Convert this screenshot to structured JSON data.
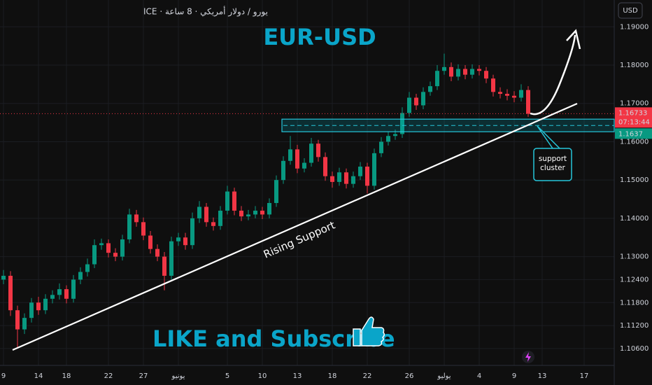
{
  "chart_data": {
    "type": "candlestick",
    "title": "EUR-USD",
    "symbol_label": "ICE · يورو / دولار أمريكي · 8 ساعة",
    "currency": "USD",
    "annotations": {
      "support_line": "Rising Support",
      "zone": "support cluster",
      "cta": "LIKE and Subscribe"
    },
    "current_price": 1.16733,
    "countdown": "07:13:44",
    "zone_price": 1.1637,
    "up_color": "#089981",
    "down_color": "#f23645",
    "ylim": [
      1.1016,
      1.197
    ],
    "yticks": [
      {
        "value": 1.19,
        "label": "1.19000"
      },
      {
        "value": 1.18,
        "label": "1.18000"
      },
      {
        "value": 1.17,
        "label": "1.17000"
      },
      {
        "value": 1.16,
        "label": "1.16000"
      },
      {
        "value": 1.15,
        "label": "1.15000"
      },
      {
        "value": 1.14,
        "label": "1.14000"
      },
      {
        "value": 1.13,
        "label": "1.13000"
      },
      {
        "value": 1.124,
        "label": "1.12400"
      },
      {
        "value": 1.118,
        "label": "1.11800"
      },
      {
        "value": 1.112,
        "label": "1.11200"
      },
      {
        "value": 1.106,
        "label": "1.10600"
      }
    ],
    "xlim": [
      -0.5,
      87.3
    ],
    "xticks": [
      {
        "value": 0,
        "label": "9"
      },
      {
        "value": 5,
        "label": "14"
      },
      {
        "value": 9,
        "label": "18"
      },
      {
        "value": 15,
        "label": "22"
      },
      {
        "value": 20,
        "label": "27"
      },
      {
        "value": 25,
        "label": "يونيو"
      },
      {
        "value": 32,
        "label": "5"
      },
      {
        "value": 37,
        "label": "10"
      },
      {
        "value": 42,
        "label": "13"
      },
      {
        "value": 47,
        "label": "18"
      },
      {
        "value": 52,
        "label": "22"
      },
      {
        "value": 58,
        "label": "26"
      },
      {
        "value": 63,
        "label": "يوليو"
      },
      {
        "value": 68,
        "label": "4"
      },
      {
        "value": 73,
        "label": "9"
      },
      {
        "value": 77,
        "label": "13"
      },
      {
        "value": 83,
        "label": "17"
      }
    ],
    "open": [
      1.124,
      1.125,
      1.116,
      1.111,
      1.114,
      1.118,
      1.116,
      1.119,
      1.12,
      1.1215,
      1.119,
      1.124,
      1.126,
      1.128,
      1.133,
      1.1335,
      1.131,
      1.13,
      1.1345,
      1.141,
      1.139,
      1.1355,
      1.132,
      1.13,
      1.125,
      1.134,
      1.135,
      1.133,
      1.14,
      1.143,
      1.139,
      1.138,
      1.142,
      1.147,
      1.142,
      1.1405,
      1.141,
      1.142,
      1.141,
      1.144,
      1.15,
      1.155,
      1.158,
      1.153,
      1.1545,
      1.1595,
      1.156,
      1.151,
      1.1495,
      1.152,
      1.149,
      1.151,
      1.1535,
      1.1485,
      1.157,
      1.16,
      1.1615,
      1.162,
      1.1675,
      1.1715,
      1.1695,
      1.173,
      1.1745,
      1.1785,
      1.1795,
      1.177,
      1.179,
      1.1775,
      1.179,
      1.1785,
      1.1765,
      1.173,
      1.1725,
      1.172,
      1.1715,
      1.1735
    ],
    "high": [
      1.1265,
      1.1262,
      1.1172,
      1.1152,
      1.1192,
      1.1195,
      1.1202,
      1.1212,
      1.123,
      1.1225,
      1.1252,
      1.1272,
      1.1295,
      1.1345,
      1.1347,
      1.1345,
      1.1322,
      1.1357,
      1.1425,
      1.1422,
      1.1402,
      1.1367,
      1.1332,
      1.1312,
      1.1352,
      1.1362,
      1.1362,
      1.1415,
      1.1445,
      1.144,
      1.1402,
      1.1432,
      1.1485,
      1.148,
      1.1432,
      1.1422,
      1.1432,
      1.143,
      1.1452,
      1.1512,
      1.1562,
      1.1615,
      1.1592,
      1.1557,
      1.161,
      1.1605,
      1.1572,
      1.1522,
      1.1532,
      1.153,
      1.1522,
      1.1547,
      1.1545,
      1.1582,
      1.1612,
      1.1627,
      1.1632,
      1.169,
      1.173,
      1.1725,
      1.1742,
      1.1757,
      1.18,
      1.183,
      1.1807,
      1.1802,
      1.18,
      1.1802,
      1.18,
      1.1795,
      1.1775,
      1.1742,
      1.1737,
      1.1732,
      1.175,
      1.1745
    ],
    "low": [
      1.1228,
      1.1145,
      1.1062,
      1.1098,
      1.1128,
      1.1148,
      1.115,
      1.1178,
      1.1188,
      1.1178,
      1.118,
      1.1228,
      1.1248,
      1.127,
      1.1318,
      1.1298,
      1.1288,
      1.129,
      1.1335,
      1.1378,
      1.1343,
      1.1308,
      1.1288,
      1.1212,
      1.124,
      1.1328,
      1.1318,
      1.132,
      1.1388,
      1.1378,
      1.1368,
      1.137,
      1.141,
      1.1408,
      1.1393,
      1.1395,
      1.14,
      1.1398,
      1.14,
      1.143,
      1.149,
      1.154,
      1.1518,
      1.152,
      1.1535,
      1.1548,
      1.1498,
      1.148,
      1.1485,
      1.1478,
      1.148,
      1.15,
      1.1465,
      1.1475,
      1.156,
      1.159,
      1.1605,
      1.161,
      1.1665,
      1.1683,
      1.1685,
      1.172,
      1.1735,
      1.1775,
      1.1758,
      1.176,
      1.1763,
      1.1765,
      1.1773,
      1.1753,
      1.1718,
      1.1713,
      1.1708,
      1.1703,
      1.1705,
      1.1665
    ],
    "close": [
      1.125,
      1.116,
      1.111,
      1.114,
      1.118,
      1.116,
      1.119,
      1.12,
      1.1215,
      1.119,
      1.124,
      1.126,
      1.128,
      1.133,
      1.1335,
      1.131,
      1.13,
      1.1345,
      1.141,
      1.139,
      1.1355,
      1.132,
      1.13,
      1.125,
      1.134,
      1.135,
      1.133,
      1.14,
      1.143,
      1.139,
      1.138,
      1.142,
      1.147,
      1.142,
      1.1405,
      1.141,
      1.142,
      1.141,
      1.144,
      1.15,
      1.155,
      1.158,
      1.153,
      1.1545,
      1.1595,
      1.156,
      1.151,
      1.1495,
      1.152,
      1.149,
      1.151,
      1.1535,
      1.1485,
      1.157,
      1.16,
      1.1615,
      1.162,
      1.1675,
      1.1715,
      1.1695,
      1.173,
      1.1745,
      1.1785,
      1.1795,
      1.177,
      1.179,
      1.1775,
      1.179,
      1.1785,
      1.1765,
      1.173,
      1.1725,
      1.172,
      1.1715,
      1.1735,
      1.1673
    ]
  }
}
